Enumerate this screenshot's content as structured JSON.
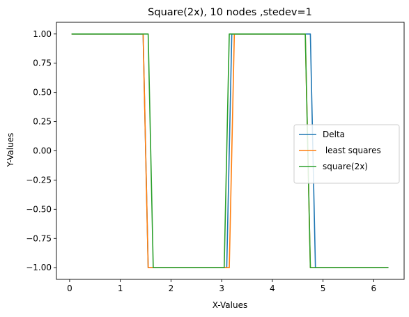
{
  "chart_data": {
    "type": "line",
    "title": "Square(2x), 10 nodes ,stedev=1",
    "xlabel": "X-Values",
    "ylabel": "Y-Values",
    "xlim": [
      -0.26,
      6.6
    ],
    "ylim": [
      -1.1,
      1.1
    ],
    "xticks": [
      0,
      1,
      2,
      3,
      4,
      5,
      6
    ],
    "xtick_labels": [
      "0",
      "1",
      "2",
      "3",
      "4",
      "5",
      "6"
    ],
    "yticks": [
      -1.0,
      -0.75,
      -0.5,
      -0.25,
      0.0,
      0.25,
      0.5,
      0.75,
      1.0
    ],
    "ytick_labels": [
      "−1.00",
      "−0.75",
      "−0.50",
      "−0.25",
      "0.00",
      "0.25",
      "0.50",
      "0.75",
      "1.00"
    ],
    "grid": false,
    "legend_position": "center-right",
    "series": [
      {
        "name": "Delta",
        "color": "#1f77b4",
        "x": [
          0.05,
          1.45,
          1.55,
          3.1,
          3.2,
          4.75,
          4.85,
          6.28
        ],
        "y": [
          1,
          1,
          -1,
          -1,
          1,
          1,
          -1,
          -1
        ]
      },
      {
        "name": " least squares",
        "color": "#ff7f0e",
        "x": [
          0.05,
          1.45,
          1.55,
          3.15,
          3.25,
          4.65,
          4.75,
          6.28
        ],
        "y": [
          1,
          1,
          -1,
          -1,
          1,
          1,
          -1,
          -1
        ]
      },
      {
        "name": "square(2x)",
        "color": "#2ca02c",
        "x": [
          0.05,
          1.55,
          1.65,
          3.05,
          3.15,
          4.65,
          4.75,
          6.28
        ],
        "y": [
          1,
          1,
          -1,
          -1,
          1,
          1,
          -1,
          -1
        ]
      }
    ]
  }
}
